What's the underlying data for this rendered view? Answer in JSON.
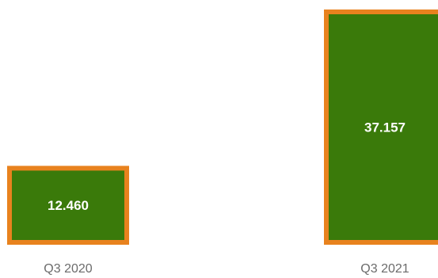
{
  "chart_data": {
    "type": "bar",
    "categories": [
      "Q3 2020",
      "Q3 2021"
    ],
    "values": [
      12.46,
      37.157
    ],
    "value_labels": [
      "12.460",
      "37.157"
    ],
    "ylim": [
      0,
      37.157
    ],
    "grid": false,
    "legend": "none",
    "colors": {
      "bar_fill": "#3a7a0a",
      "bar_border": "#e8821e",
      "value_text": "#ffffff",
      "category_text": "#6b6b6b"
    }
  }
}
